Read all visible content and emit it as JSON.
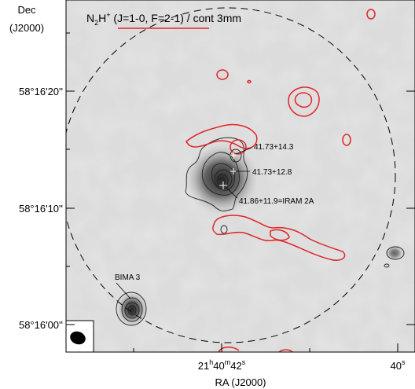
{
  "chart_data": {
    "type": "contour",
    "title_parts": {
      "species": "N",
      "species_sub": "2",
      "species_sup": "H",
      "species_charge": "+",
      "transition": " (J=1-0, F=2-1) / cont 3mm"
    },
    "xlabel": "RA (J2000)",
    "ylabel_line1": "Dec",
    "ylabel_line2": "(J2000)",
    "x_ticks": [
      {
        "h": "21",
        "m": "40",
        "s": "42",
        "label_sec": "42"
      },
      {
        "h": "",
        "m": "",
        "s": "40",
        "label_sec": "40"
      }
    ],
    "x_tick_major_label": "21",
    "x_tick_major_h": "h",
    "x_tick_major_min": "40",
    "x_tick_major_m": "m",
    "x_tick_major_sec": "42",
    "x_tick_major_s": "s",
    "x_tick_minor_sec": "40",
    "x_tick_minor_s": "s",
    "y_ticks": [
      "58°16'20''",
      "58°16'10''",
      "58°16'00''"
    ],
    "y_tick_values_arcsec": [
      20,
      10,
      0
    ],
    "x_range_sec": [
      43.1,
      39.5
    ],
    "y_range_arcsec": [
      -4,
      29
    ],
    "primary_beam": "dashed circle",
    "series": [
      {
        "name": "N2H+ (J=1-0, F=2-1)",
        "style": "red contours"
      },
      {
        "name": "cont 3mm",
        "style": "black contours on greyscale"
      }
    ],
    "annotations": [
      {
        "text": "41.73+14.3",
        "ra_sec": 41.73,
        "dec_arcsec": 14.3
      },
      {
        "text": "41.73+12.8",
        "ra_sec": 41.73,
        "dec_arcsec": 12.8
      },
      {
        "text": "41.86+11.9=IRAM 2A",
        "ra_sec": 41.86,
        "dec_arcsec": 11.9
      },
      {
        "text": "BIMA 3",
        "ra_sec": 42.5,
        "dec_arcsec": 1.5
      }
    ],
    "colors": {
      "n2hp": "#e0262a",
      "continuum": "#222222",
      "background": "#d9d9d9"
    }
  }
}
